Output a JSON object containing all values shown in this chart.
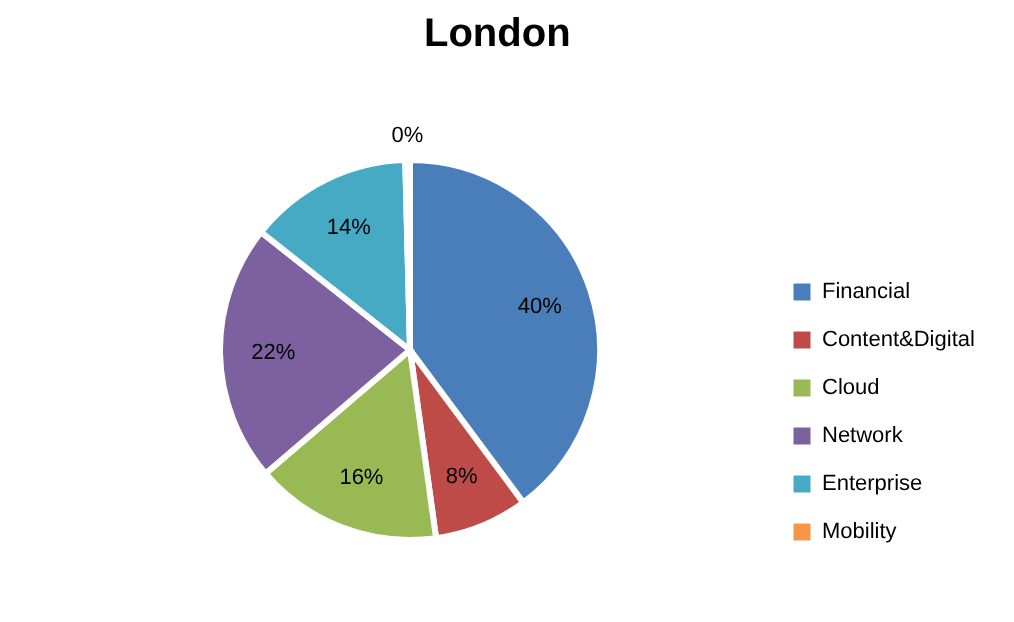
{
  "chart_data": {
    "type": "pie",
    "title": "London",
    "categories": [
      "Financial",
      "Content&Digital",
      "Cloud",
      "Network",
      "Enterprise",
      "Mobility"
    ],
    "values": [
      40,
      8,
      16,
      22,
      14,
      0.4
    ],
    "value_labels": [
      "40%",
      "8%",
      "16%",
      "22%",
      "14%",
      "0%"
    ],
    "colors": [
      "#4a7ebb",
      "#be4b48",
      "#98b954",
      "#7d60a0",
      "#46aac5",
      "#f79646"
    ],
    "legend": "right"
  }
}
